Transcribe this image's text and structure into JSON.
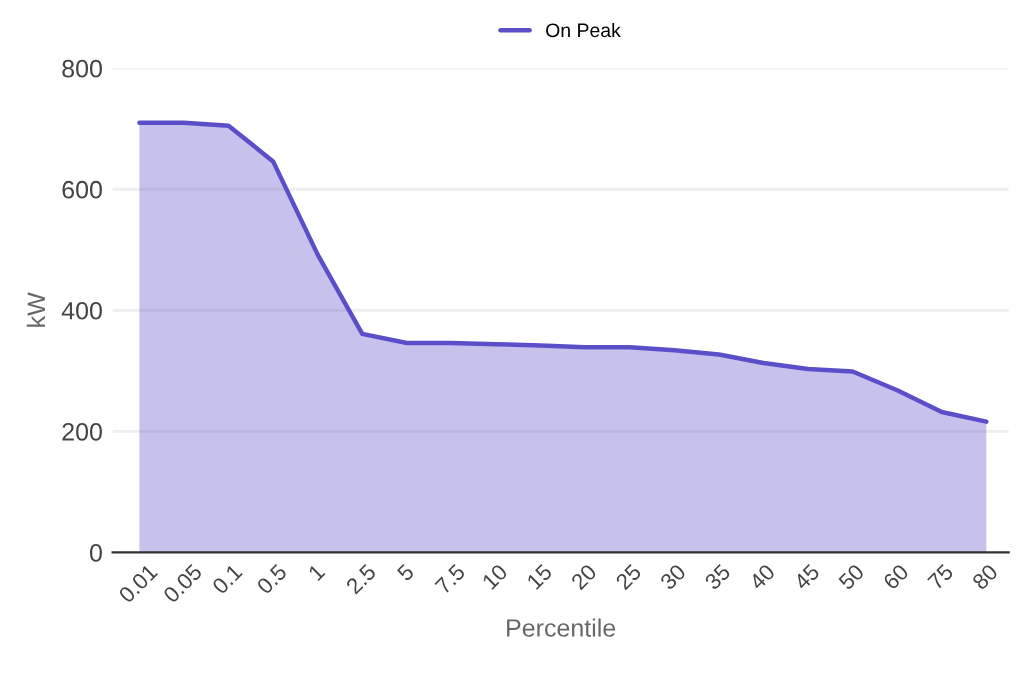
{
  "chart_data": {
    "type": "area",
    "xlabel": "Percentile",
    "ylabel": "kW",
    "categories": [
      "0.01",
      "0.05",
      "0.1",
      "0.5",
      "1",
      "2.5",
      "5",
      "7.5",
      "10",
      "15",
      "20",
      "25",
      "30",
      "35",
      "40",
      "45",
      "50",
      "60",
      "75",
      "80"
    ],
    "series": [
      {
        "name": "On Peak",
        "color": "#5b4fc9",
        "values": [
          710,
          710,
          705,
          646,
          492,
          361,
          346,
          346,
          344,
          342,
          339,
          339,
          334,
          327,
          313,
          303,
          299,
          268,
          232,
          216
        ]
      }
    ],
    "ylim": [
      0,
      800
    ],
    "yticks": [
      0,
      200,
      400,
      600,
      800
    ],
    "grid": "y",
    "legend": "top"
  }
}
